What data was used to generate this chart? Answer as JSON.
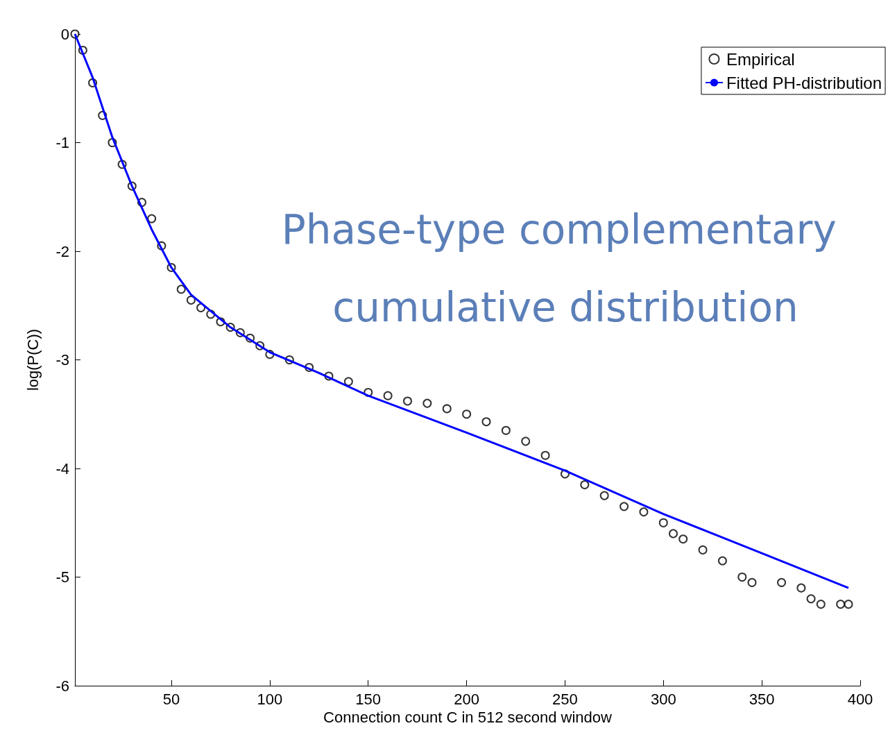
{
  "chart_data": {
    "type": "scatter",
    "title": "Phase-type complementary cumulative distribution",
    "xlabel": "Connection count C in 512 second window",
    "ylabel": "log(P(C))",
    "xlim": [
      1,
      400
    ],
    "xticks": [
      50,
      100,
      150,
      200,
      250,
      300,
      350,
      400
    ],
    "ylim": [
      -6,
      0
    ],
    "yticks": [
      -6,
      -5,
      -4,
      -3,
      -2,
      -1,
      0
    ],
    "grid": false,
    "legend": "top right",
    "marker": "circle",
    "line_style": "solid",
    "series": [
      {
        "name": "Empirical",
        "color": "#000000",
        "x": [
          1,
          5,
          10,
          15,
          20,
          25,
          30,
          35,
          40,
          45,
          50,
          55,
          60,
          65,
          70,
          75,
          80,
          85,
          90,
          95,
          100,
          110,
          120,
          130,
          140,
          150,
          160,
          170,
          180,
          190,
          200,
          210,
          220,
          230,
          240,
          250,
          260,
          270,
          280,
          290,
          300,
          305,
          310,
          320,
          330,
          340,
          345,
          360,
          370,
          375,
          380,
          390,
          394
        ],
        "values": [
          0,
          -0.15,
          -0.45,
          -0.75,
          -1.0,
          -1.2,
          -1.4,
          -1.55,
          -1.7,
          -1.95,
          -2.15,
          -2.35,
          -2.45,
          -2.52,
          -2.58,
          -2.65,
          -2.7,
          -2.75,
          -2.8,
          -2.87,
          -2.95,
          -3.0,
          -3.07,
          -3.15,
          -3.2,
          -3.3,
          -3.33,
          -3.38,
          -3.4,
          -3.45,
          -3.5,
          -3.57,
          -3.65,
          -3.75,
          -3.88,
          -4.05,
          -4.15,
          -4.25,
          -4.35,
          -4.4,
          -4.5,
          -4.6,
          -4.65,
          -4.75,
          -4.85,
          -5.0,
          -5.05,
          -5.05,
          -5.1,
          -5.2,
          -5.25,
          -5.25,
          -5.25
        ]
      },
      {
        "name": "Fitted PH-distribution",
        "type": "line",
        "marker": "none",
        "color": "#0000ff",
        "x": [
          1,
          10,
          20,
          30,
          40,
          50,
          60,
          70,
          80,
          100,
          125,
          150,
          200,
          250,
          300,
          350,
          394
        ],
        "values": [
          0,
          -0.4,
          -0.95,
          -1.4,
          -1.8,
          -2.15,
          -2.4,
          -2.55,
          -2.7,
          -2.93,
          -3.12,
          -3.33,
          -3.67,
          -4.02,
          -4.42,
          -4.78,
          -5.1
        ]
      }
    ]
  }
}
